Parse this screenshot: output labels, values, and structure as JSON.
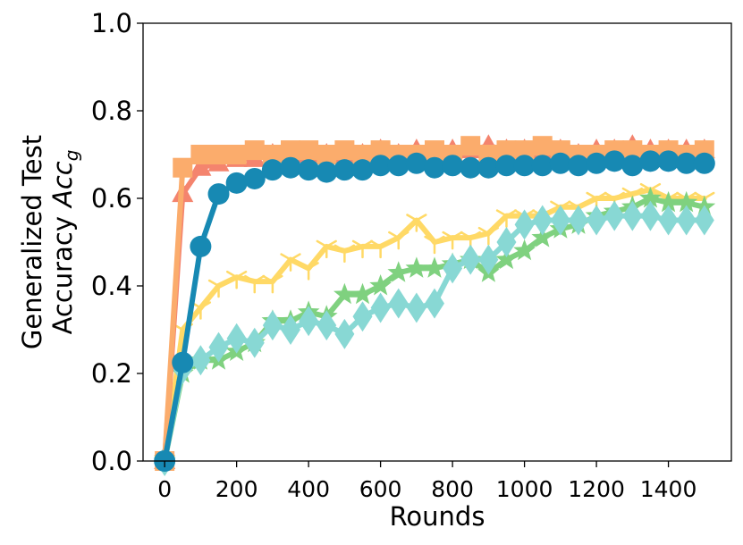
{
  "chart_data": {
    "type": "line",
    "title": "",
    "xlabel": "Rounds",
    "ylabel_line1": "Generalized Test",
    "ylabel_line2": "Accuracy",
    "ylabel_symbol": "Acc",
    "ylabel_subscript": "g",
    "xlim": [
      -60,
      1575
    ],
    "ylim": [
      0.0,
      1.0
    ],
    "xticks": [
      0,
      200,
      400,
      600,
      800,
      1000,
      1200,
      1400
    ],
    "xtick_labels": [
      "0",
      "200",
      "400",
      "600",
      "800",
      "1000",
      "1200",
      "1400"
    ],
    "yticks": [
      0.0,
      0.2,
      0.4,
      0.6,
      0.8,
      1.0
    ],
    "ytick_labels": [
      "0.0",
      "0.2",
      "0.4",
      "0.6",
      "0.8",
      "1.0"
    ],
    "grid": false,
    "legend": "none",
    "x": [
      0,
      50,
      100,
      150,
      200,
      250,
      300,
      350,
      400,
      450,
      500,
      550,
      600,
      650,
      700,
      750,
      800,
      850,
      900,
      950,
      1000,
      1050,
      1100,
      1150,
      1200,
      1250,
      1300,
      1350,
      1400,
      1450,
      1500
    ],
    "series": [
      {
        "color": "#ffd966",
        "marker": "tri-cross",
        "values": [
          0.0,
          0.3,
          0.35,
          0.4,
          0.42,
          0.41,
          0.41,
          0.46,
          0.44,
          0.49,
          0.48,
          0.49,
          0.49,
          0.51,
          0.55,
          0.5,
          0.51,
          0.51,
          0.52,
          0.56,
          0.56,
          0.56,
          0.58,
          0.58,
          0.6,
          0.6,
          0.61,
          0.62,
          0.6,
          0.6,
          0.6
        ]
      },
      {
        "color": "#7fd17f",
        "marker": "star",
        "values": [
          0.0,
          0.2,
          0.23,
          0.23,
          0.25,
          0.27,
          0.32,
          0.32,
          0.34,
          0.33,
          0.38,
          0.38,
          0.4,
          0.43,
          0.44,
          0.44,
          0.45,
          0.46,
          0.43,
          0.46,
          0.48,
          0.51,
          0.53,
          0.54,
          0.56,
          0.57,
          0.58,
          0.6,
          0.59,
          0.59,
          0.58
        ]
      },
      {
        "color": "#88d8d4",
        "marker": "diamond",
        "values": [
          0.0,
          0.21,
          0.23,
          0.26,
          0.28,
          0.27,
          0.31,
          0.3,
          0.32,
          0.31,
          0.29,
          0.33,
          0.35,
          0.36,
          0.35,
          0.36,
          0.44,
          0.46,
          0.46,
          0.5,
          0.54,
          0.55,
          0.55,
          0.55,
          0.55,
          0.56,
          0.56,
          0.56,
          0.55,
          0.55,
          0.55
        ]
      },
      {
        "color": "#f4846e",
        "marker": "triangle",
        "values": [
          0.0,
          0.61,
          0.67,
          0.68,
          0.69,
          0.69,
          0.7,
          0.7,
          0.7,
          0.7,
          0.7,
          0.7,
          0.71,
          0.7,
          0.71,
          0.7,
          0.71,
          0.71,
          0.72,
          0.71,
          0.71,
          0.71,
          0.71,
          0.7,
          0.71,
          0.71,
          0.72,
          0.71,
          0.71,
          0.71,
          0.71
        ]
      },
      {
        "color": "#fbac6c",
        "marker": "square",
        "values": [
          0.0,
          0.67,
          0.7,
          0.7,
          0.7,
          0.71,
          0.7,
          0.71,
          0.71,
          0.7,
          0.71,
          0.7,
          0.71,
          0.7,
          0.7,
          0.71,
          0.7,
          0.72,
          0.7,
          0.71,
          0.71,
          0.72,
          0.71,
          0.7,
          0.7,
          0.71,
          0.71,
          0.7,
          0.71,
          0.7,
          0.71
        ]
      },
      {
        "color": "#1789b3",
        "marker": "circle",
        "values": [
          0.0,
          0.225,
          0.49,
          0.61,
          0.635,
          0.645,
          0.665,
          0.67,
          0.665,
          0.66,
          0.665,
          0.665,
          0.675,
          0.675,
          0.68,
          0.67,
          0.675,
          0.67,
          0.67,
          0.675,
          0.675,
          0.675,
          0.68,
          0.675,
          0.68,
          0.685,
          0.675,
          0.685,
          0.685,
          0.68,
          0.68
        ]
      }
    ]
  }
}
